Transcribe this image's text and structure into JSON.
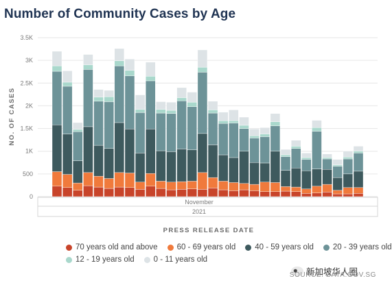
{
  "title": "Number of Community Cases by Age",
  "source": "SOURCE: DATA.GOV.SG",
  "watermark": "新加坡华人圈",
  "colors": {
    "c70": "#c8442a",
    "c60": "#f07a3c",
    "c40": "#3e5a5e",
    "c20": "#6d9398",
    "c12": "#a9d8cc",
    "c0": "#dde3e6"
  },
  "chart_data": {
    "type": "bar",
    "stacked": true,
    "title": "Number of Community Cases by Age",
    "xlabel": "PRESS RELEASE DATE",
    "ylabel": "NO. OF CASES",
    "x_group_label": "November",
    "x_year_label": "2021",
    "ylim": [
      0,
      3500
    ],
    "yticks": [
      0,
      500,
      1000,
      1500,
      2000,
      2500,
      3000,
      3500
    ],
    "ytick_labels": [
      "0",
      "500",
      "1K",
      "1.5K",
      "2K",
      "2.5K",
      "3K",
      "3.5K"
    ],
    "grid": true,
    "legend_position": "bottom",
    "n_bars": 30,
    "series": [
      {
        "name": "70 years old and above",
        "color_key": "c70",
        "values": [
          230,
          200,
          140,
          240,
          210,
          180,
          210,
          200,
          160,
          230,
          180,
          150,
          160,
          170,
          160,
          190,
          150,
          130,
          150,
          130,
          110,
          110,
          120,
          110,
          70,
          80,
          100,
          60,
          60,
          70
        ]
      },
      {
        "name": "60 - 69 years old",
        "color_key": "c60",
        "values": [
          320,
          290,
          160,
          290,
          240,
          220,
          320,
          320,
          160,
          280,
          160,
          170,
          170,
          170,
          370,
          230,
          190,
          180,
          140,
          140,
          210,
          200,
          100,
          100,
          100,
          150,
          170,
          80,
          140,
          130
        ]
      },
      {
        "name": "40 - 59 years old",
        "color_key": "c40",
        "values": [
          1030,
          890,
          490,
          1010,
          680,
          660,
          1100,
          970,
          640,
          980,
          670,
          670,
          720,
          690,
          860,
          720,
          580,
          550,
          710,
          480,
          420,
          690,
          360,
          420,
          400,
          380,
          330,
          280,
          300,
          360
        ]
      },
      {
        "name": "20 - 39 years old",
        "color_key": "c20",
        "values": [
          1180,
          1050,
          640,
          1260,
          970,
          1030,
          1250,
          1170,
          890,
          1060,
          830,
          840,
          1060,
          950,
          1350,
          700,
          690,
          760,
          500,
          540,
          580,
          560,
          300,
          430,
          250,
          830,
          230,
          250,
          330,
          400
        ]
      },
      {
        "name": "12 - 19 years old",
        "color_key": "c12",
        "values": [
          120,
          90,
          50,
          100,
          90,
          110,
          110,
          120,
          70,
          100,
          80,
          70,
          70,
          100,
          110,
          70,
          60,
          50,
          70,
          50,
          60,
          90,
          40,
          50,
          40,
          80,
          30,
          30,
          40,
          40
        ]
      },
      {
        "name": "0 - 11 years old",
        "color_key": "c0",
        "values": [
          320,
          250,
          150,
          230,
          170,
          140,
          270,
          250,
          320,
          310,
          170,
          180,
          220,
          220,
          380,
          190,
          190,
          240,
          180,
          150,
          140,
          180,
          120,
          130,
          100,
          160,
          80,
          120,
          130,
          110
        ]
      }
    ]
  }
}
